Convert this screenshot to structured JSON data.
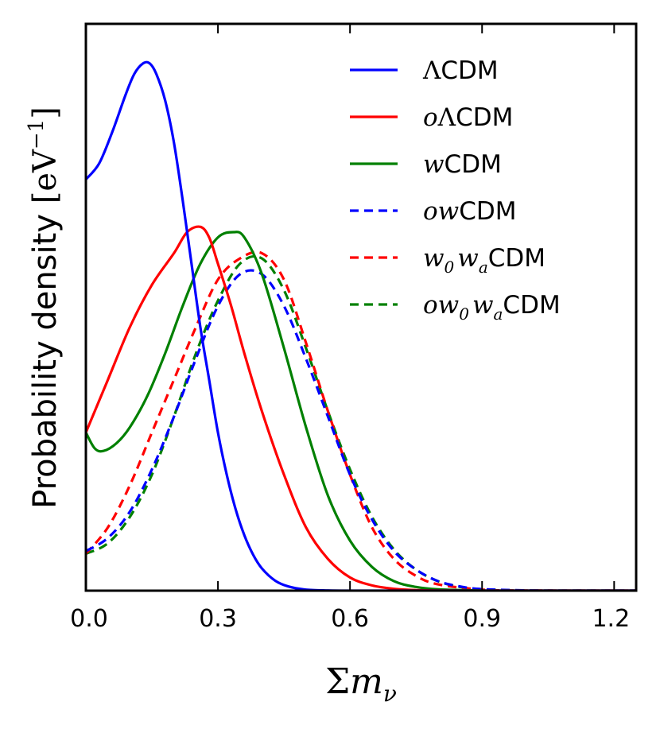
{
  "chart_data": {
    "type": "line",
    "title": "",
    "xlabel": "Σm_ν",
    "xlabel_parts": {
      "sigma": "Σ",
      "m": "m",
      "sub": "ν"
    },
    "ylabel": "Probability density [eV^-1]",
    "ylabel_parts": {
      "text": "Probability density ",
      "bracket_open": "[",
      "unit": "eV",
      "sup": "−1",
      "bracket_close": "]"
    },
    "xlim": [
      0.0,
      1.25
    ],
    "ylim": [
      0.0,
      1.0
    ],
    "xticks": [
      0.0,
      0.3,
      0.6,
      0.9,
      1.2
    ],
    "xtick_labels": [
      "0.0",
      "0.3",
      "0.6",
      "0.9",
      "1.2"
    ],
    "yticks_shown": false,
    "legend_position": "top-right",
    "series": [
      {
        "name": "ΛCDM",
        "label_math": "Λ",
        "label_sub": "",
        "label_text": "CDM",
        "color": "#0000ff",
        "dash": "solid",
        "x": [
          0.0,
          0.03,
          0.06,
          0.09,
          0.11,
          0.13,
          0.145,
          0.16,
          0.18,
          0.2,
          0.22,
          0.24,
          0.26,
          0.28,
          0.3,
          0.32,
          0.34,
          0.36,
          0.38,
          0.4,
          0.43,
          0.46,
          0.5,
          0.55,
          0.6,
          0.7,
          0.9,
          1.25
        ],
        "y": [
          0.78,
          0.81,
          0.87,
          0.94,
          0.98,
          1.0,
          1.0,
          0.98,
          0.93,
          0.85,
          0.74,
          0.62,
          0.5,
          0.4,
          0.3,
          0.22,
          0.155,
          0.105,
          0.068,
          0.042,
          0.019,
          0.008,
          0.002,
          0.0005,
          0.0001,
          0.0,
          0.0,
          0.0
        ]
      },
      {
        "name": "oΛCDM",
        "label_math": "oΛ",
        "label_sub": "",
        "label_text": "CDM",
        "color": "#ff0000",
        "dash": "solid",
        "x": [
          0.0,
          0.05,
          0.1,
          0.15,
          0.2,
          0.23,
          0.26,
          0.28,
          0.3,
          0.33,
          0.36,
          0.4,
          0.45,
          0.5,
          0.55,
          0.6,
          0.65,
          0.7,
          0.75,
          0.8,
          0.9,
          1.0,
          1.25
        ],
        "y": [
          0.3,
          0.4,
          0.5,
          0.58,
          0.64,
          0.68,
          0.69,
          0.67,
          0.62,
          0.54,
          0.45,
          0.34,
          0.22,
          0.12,
          0.06,
          0.025,
          0.01,
          0.0035,
          0.001,
          0.0003,
          0.0,
          0.0,
          0.0
        ]
      },
      {
        "name": "wCDM",
        "label_math": "w",
        "label_sub": "",
        "label_text": "CDM",
        "color": "#008000",
        "dash": "solid",
        "x": [
          0.0,
          0.02,
          0.04,
          0.07,
          0.1,
          0.14,
          0.18,
          0.22,
          0.26,
          0.3,
          0.335,
          0.36,
          0.4,
          0.45,
          0.5,
          0.55,
          0.6,
          0.65,
          0.7,
          0.75,
          0.8,
          0.9,
          1.0,
          1.25
        ],
        "y": [
          0.3,
          0.27,
          0.265,
          0.28,
          0.31,
          0.37,
          0.45,
          0.54,
          0.62,
          0.67,
          0.68,
          0.67,
          0.6,
          0.46,
          0.31,
          0.18,
          0.095,
          0.045,
          0.018,
          0.007,
          0.0025,
          0.0003,
          0.0,
          0.0
        ]
      },
      {
        "name": "owCDM",
        "label_math": "ow",
        "label_sub": "",
        "label_text": "CDM",
        "color": "#0000ff",
        "dash": "dashed",
        "x": [
          0.0,
          0.05,
          0.1,
          0.15,
          0.2,
          0.25,
          0.3,
          0.35,
          0.4,
          0.45,
          0.5,
          0.55,
          0.6,
          0.65,
          0.7,
          0.75,
          0.8,
          0.85,
          0.9,
          1.0,
          1.1,
          1.25
        ],
        "y": [
          0.075,
          0.1,
          0.15,
          0.23,
          0.33,
          0.44,
          0.54,
          0.6,
          0.6,
          0.54,
          0.44,
          0.33,
          0.22,
          0.135,
          0.075,
          0.04,
          0.018,
          0.008,
          0.003,
          0.0005,
          0.0,
          0.0
        ]
      },
      {
        "name": "w0waCDM",
        "label_math": "w",
        "label_sub": "0",
        "label_math2": "w",
        "label_sub2": "a",
        "label_text": "CDM",
        "color": "#ff0000",
        "dash": "dashed",
        "x": [
          0.0,
          0.05,
          0.1,
          0.15,
          0.2,
          0.25,
          0.3,
          0.35,
          0.4,
          0.45,
          0.5,
          0.55,
          0.6,
          0.65,
          0.7,
          0.75,
          0.8,
          0.9,
          1.0,
          1.25
        ],
        "y": [
          0.07,
          0.12,
          0.2,
          0.3,
          0.4,
          0.5,
          0.59,
          0.63,
          0.64,
          0.59,
          0.47,
          0.34,
          0.22,
          0.12,
          0.06,
          0.028,
          0.012,
          0.002,
          0.0003,
          0.0
        ]
      },
      {
        "name": "ow0waCDM",
        "label_math": "ow",
        "label_sub": "0",
        "label_math2": "w",
        "label_sub2": "a",
        "label_text": "CDM",
        "color": "#008000",
        "dash": "dashed",
        "x": [
          0.0,
          0.05,
          0.1,
          0.15,
          0.2,
          0.25,
          0.3,
          0.35,
          0.4,
          0.45,
          0.5,
          0.55,
          0.6,
          0.65,
          0.7,
          0.75,
          0.8,
          0.85,
          0.9,
          1.0,
          1.1,
          1.25
        ],
        "y": [
          0.07,
          0.09,
          0.14,
          0.22,
          0.33,
          0.45,
          0.55,
          0.62,
          0.63,
          0.57,
          0.46,
          0.34,
          0.23,
          0.14,
          0.078,
          0.04,
          0.018,
          0.007,
          0.0025,
          0.0003,
          0.0,
          0.0
        ]
      }
    ]
  }
}
